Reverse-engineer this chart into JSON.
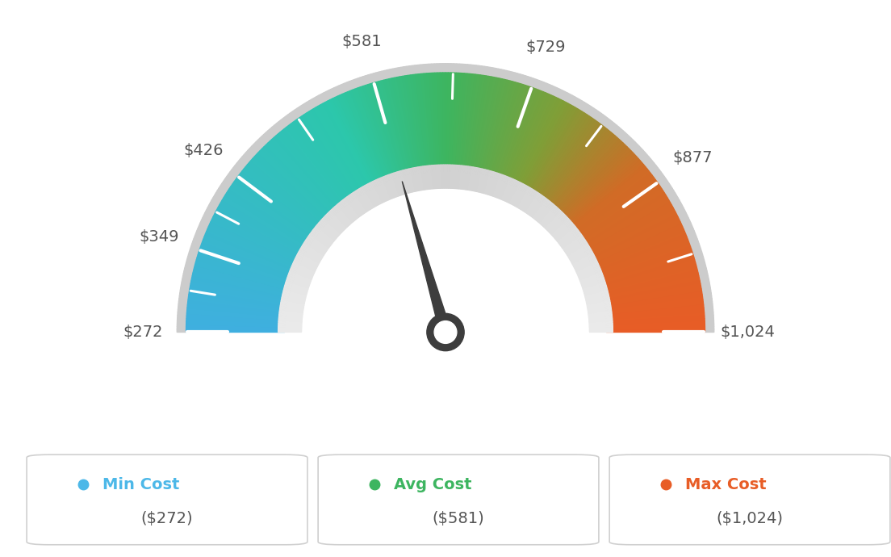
{
  "min_val": 272,
  "max_val": 1024,
  "avg_val": 581,
  "labels": [
    "$272",
    "$349",
    "$426",
    "$581",
    "$729",
    "$877",
    "$1,024"
  ],
  "label_values": [
    272,
    349,
    426,
    581,
    729,
    877,
    1024
  ],
  "min_cost_label": "Min Cost",
  "avg_cost_label": "Avg Cost",
  "max_cost_label": "Max Cost",
  "min_cost_val": "($272)",
  "avg_cost_val": "($581)",
  "max_cost_val": "($1,024)",
  "min_color": "#4db8e8",
  "avg_color": "#3db560",
  "max_color": "#e85d26",
  "bg_color": "#ffffff",
  "needle_value": 581,
  "color_stops": [
    [
      0.0,
      [
        0.247,
        0.686,
        0.878
      ]
    ],
    [
      0.35,
      [
        0.173,
        0.78,
        0.671
      ]
    ],
    [
      0.5,
      [
        0.239,
        0.71,
        0.376
      ]
    ],
    [
      0.65,
      [
        0.502,
        0.62,
        0.216
      ]
    ],
    [
      0.78,
      [
        0.82,
        0.42,
        0.149
      ]
    ],
    [
      1.0,
      [
        0.91,
        0.361,
        0.149
      ]
    ]
  ]
}
